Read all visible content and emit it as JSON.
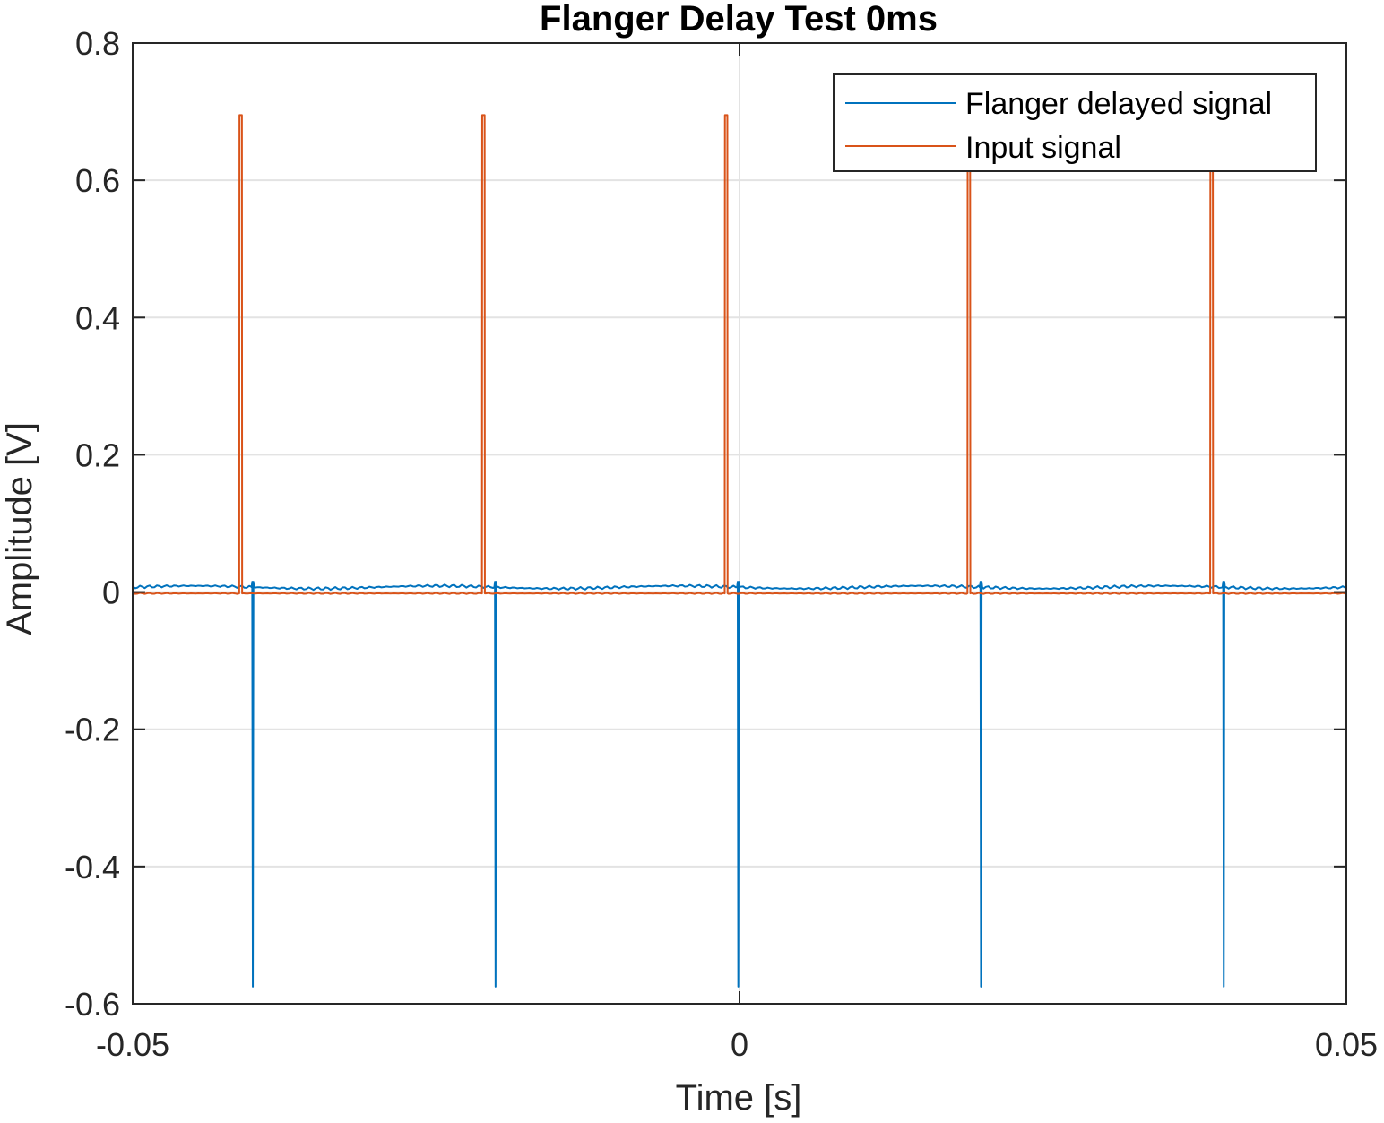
{
  "chart_data": {
    "type": "line",
    "title": "Flanger Delay Test 0ms",
    "xlabel": "Time [s]",
    "ylabel": "Amplitude [V]",
    "xlim": [
      -0.05,
      0.05
    ],
    "ylim": [
      -0.6,
      0.8
    ],
    "xticks": [
      -0.05,
      0,
      0.05
    ],
    "xtick_labels": [
      "-0.05",
      "0",
      "0.05"
    ],
    "yticks": [
      -0.6,
      -0.4,
      -0.2,
      0,
      0.2,
      0.4,
      0.6,
      0.8
    ],
    "ytick_labels": [
      "-0.6",
      "-0.4",
      "-0.2",
      "0",
      "0.2",
      "0.4",
      "0.6",
      "0.8"
    ],
    "grid": true,
    "legend_position": "top-right",
    "series": [
      {
        "name": "Flanger delayed signal",
        "color": "#0072BD",
        "baseline": 0.007,
        "pulse_times": [
          -0.0401,
          -0.0201,
          -0.0001,
          0.0199,
          0.0399
        ],
        "pulse_min": -0.575,
        "pulse_max": 0.015
      },
      {
        "name": "Input signal",
        "color": "#D95319",
        "baseline": -0.002,
        "pulse_times": [
          -0.0412,
          -0.0212,
          -0.0012,
          0.0188,
          0.0388
        ],
        "pulse_max": 0.695,
        "pulse_width": 0.0002
      }
    ]
  }
}
